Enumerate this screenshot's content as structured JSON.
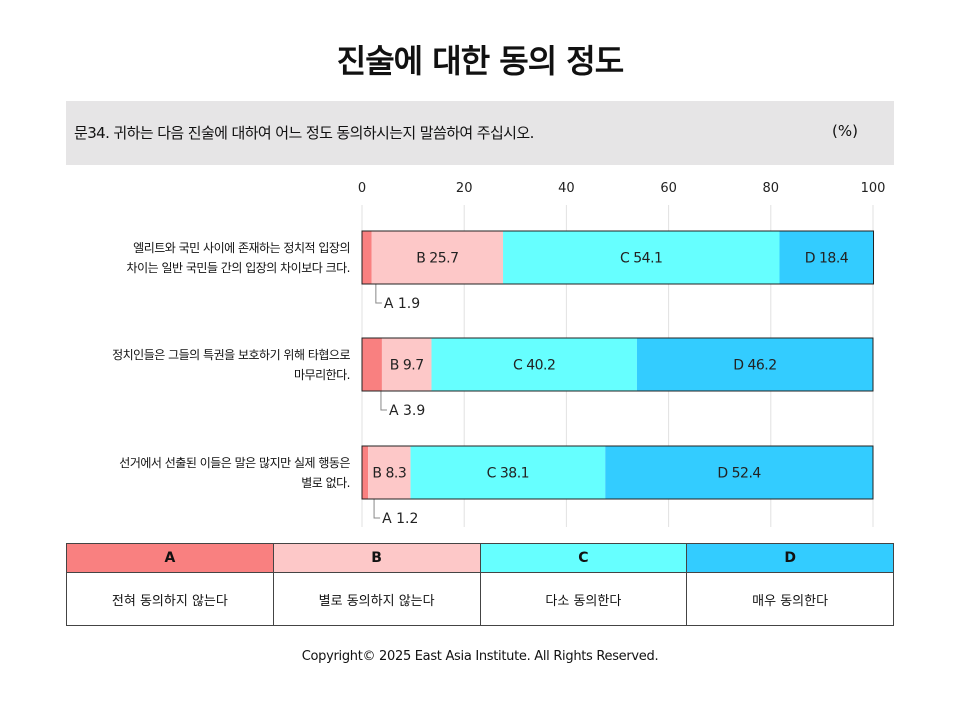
{
  "title": "진술에 대한 동의 정도",
  "question": {
    "text": "문34. 귀하는 다음 진술에 대하여 어느 정도 동의하시는지 말씀하여 주십시오.",
    "unit": "(%)"
  },
  "chart_data": {
    "type": "bar",
    "orientation": "horizontal-stacked",
    "xlim": [
      0,
      100
    ],
    "x_ticks": [
      "0",
      "20",
      "40",
      "60",
      "80",
      "100"
    ],
    "grid": true,
    "categories": [
      "엘리트와 국민 사이에 존재하는 정치적 입장의\n차이는 일반 국민들 간의 입장의 차이보다 크다.",
      "정치인들은 그들의 특권을 보호하기 위해 타협으로\n마무리한다.",
      "선거에서 선출된 이들은 말은 많지만 실제 행동은\n별로 없다."
    ],
    "series": [
      {
        "name": "A",
        "color": "#f98080",
        "values": [
          1.9,
          3.9,
          1.2
        ]
      },
      {
        "name": "B",
        "color": "#fdc8c8",
        "values": [
          25.7,
          9.7,
          8.3
        ]
      },
      {
        "name": "C",
        "color": "#66ffff",
        "values": [
          54.1,
          40.2,
          38.1
        ]
      },
      {
        "name": "D",
        "color": "#33ccff",
        "values": [
          18.4,
          46.2,
          52.4
        ]
      }
    ]
  },
  "legend": {
    "headers": [
      {
        "label": "A",
        "color": "#f98080"
      },
      {
        "label": "B",
        "color": "#fdc8c8"
      },
      {
        "label": "C",
        "color": "#66ffff"
      },
      {
        "label": "D",
        "color": "#33ccff"
      }
    ],
    "descriptions": [
      "전혀 동의하지 않는다",
      "별로 동의하지 않는다",
      "다소 동의한다",
      "매우 동의한다"
    ]
  },
  "footer": "Copyright© 2025 East Asia Institute. All Rights Reserved."
}
